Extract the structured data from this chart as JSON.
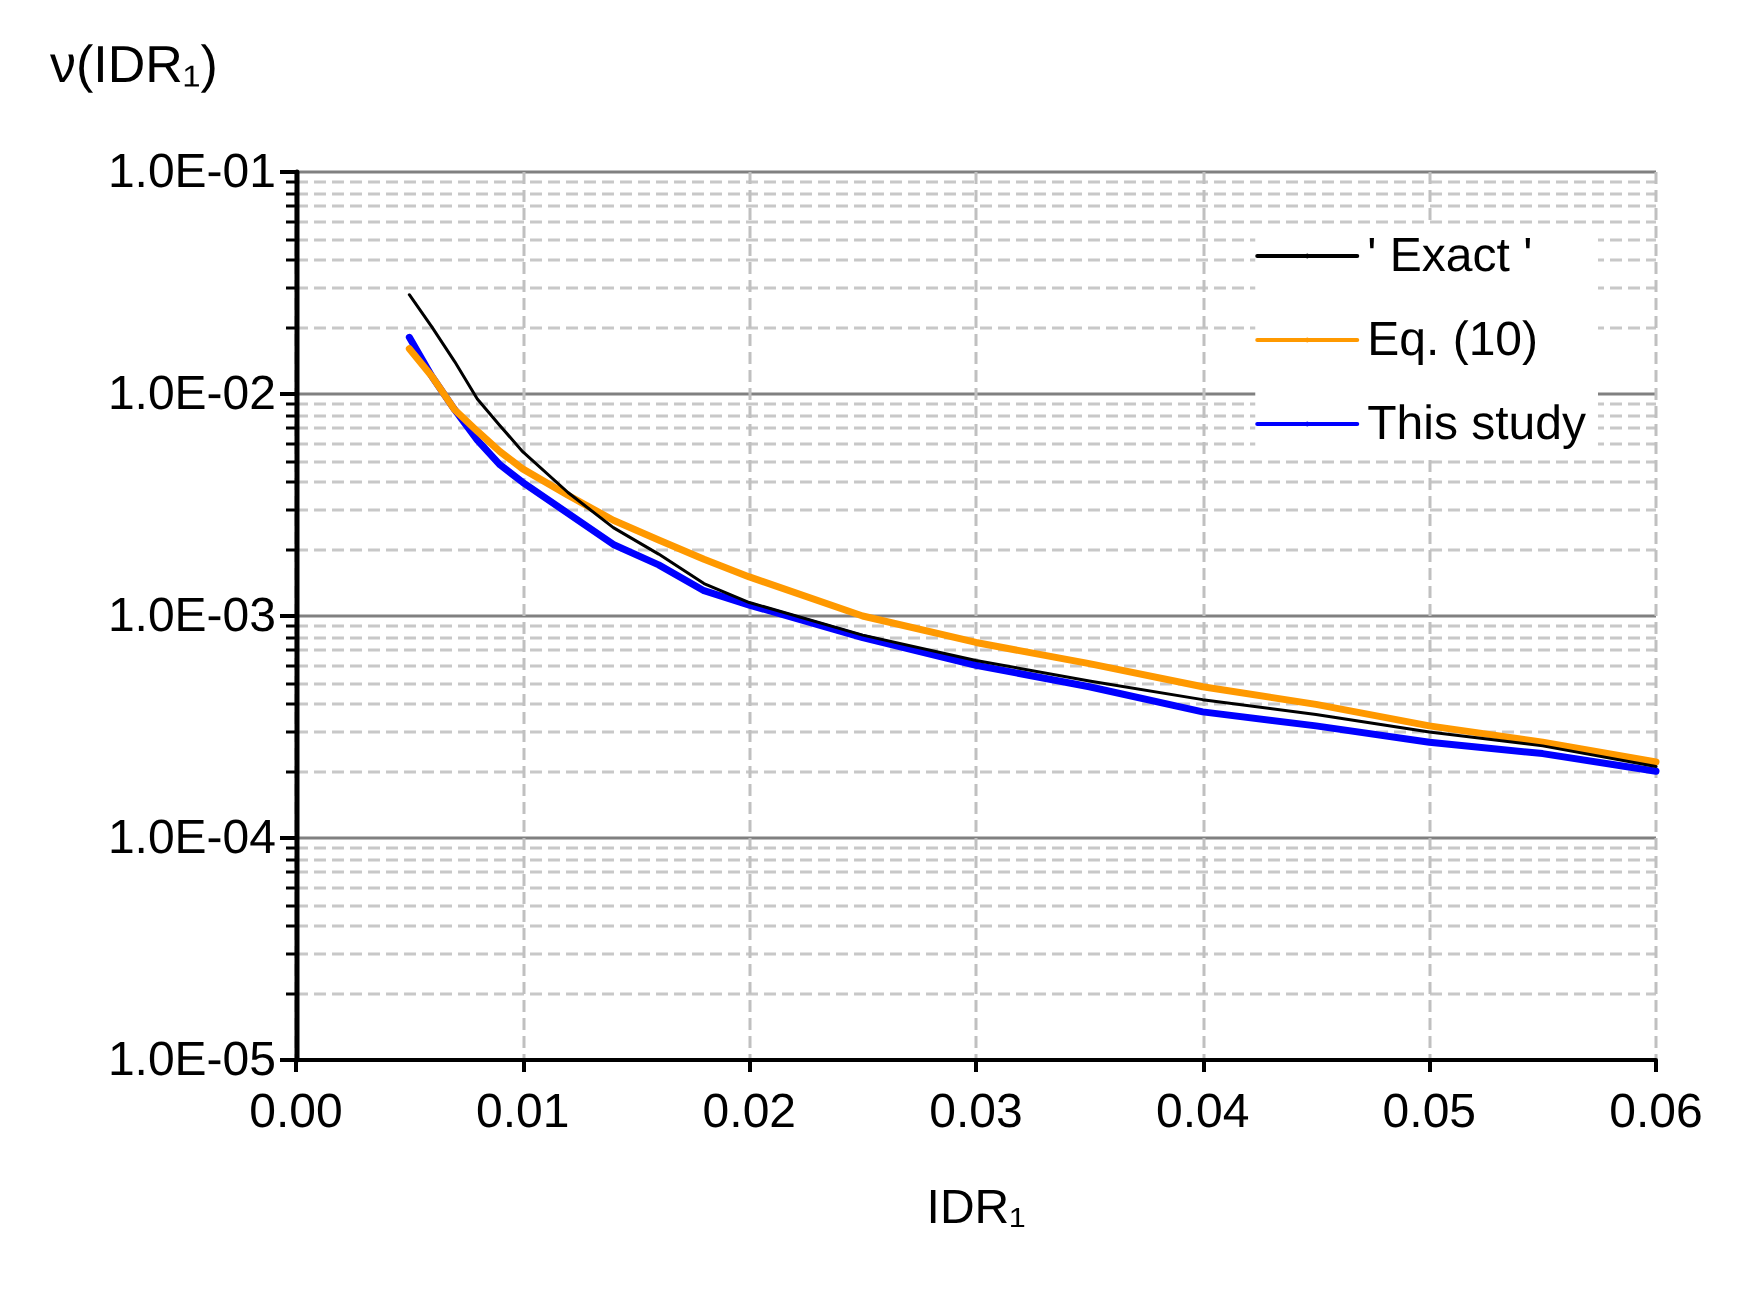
{
  "chart_data": {
    "type": "line",
    "ylabel": "ν(IDR₁)",
    "xlabel": "IDR₁",
    "log": "y",
    "grid": true,
    "legend": "top right",
    "marker": "none",
    "line_style": "solid",
    "x": [
      0.005,
      0.006,
      0.007,
      0.008,
      0.009,
      0.01,
      0.012,
      0.014,
      0.016,
      0.018,
      0.02,
      0.025,
      0.03,
      0.035,
      0.04,
      0.045,
      0.05,
      0.055,
      0.06
    ],
    "xlim": [
      0,
      0.06
    ],
    "ylim": [
      1e-05,
      0.1
    ],
    "xticks": [
      {
        "value": 0,
        "label": "0.00"
      },
      {
        "value": 0.01,
        "label": "0.01"
      },
      {
        "value": 0.02,
        "label": "0.02"
      },
      {
        "value": 0.03,
        "label": "0.03"
      },
      {
        "value": 0.04,
        "label": "0.04"
      },
      {
        "value": 0.05,
        "label": "0.05"
      },
      {
        "value": 0.06,
        "label": "0.06"
      }
    ],
    "yticks": [
      {
        "value": 1e-05,
        "label": "1.0E-05"
      },
      {
        "value": 0.0001,
        "label": "1.0E-04"
      },
      {
        "value": 0.001,
        "label": "1.0E-03"
      },
      {
        "value": 0.01,
        "label": "1.0E-02"
      },
      {
        "value": 0.1,
        "label": "1.0E-01"
      }
    ],
    "series": [
      {
        "name": "' Exact '",
        "color": "#000000",
        "values": [
          0.028,
          0.02,
          0.014,
          0.0095,
          0.0072,
          0.0055,
          0.0036,
          0.0025,
          0.0019,
          0.0014,
          0.00115,
          0.00082,
          0.00063,
          0.00051,
          0.00042,
          0.00036,
          0.0003,
          0.00026,
          0.00021
        ]
      },
      {
        "name": "Eq. (10)",
        "color": "#ff9900",
        "values": [
          0.016,
          0.012,
          0.0085,
          0.0068,
          0.0055,
          0.0046,
          0.0035,
          0.0027,
          0.0022,
          0.0018,
          0.0015,
          0.001,
          0.00076,
          0.00061,
          0.00048,
          0.0004,
          0.00032,
          0.00027,
          0.00022
        ]
      },
      {
        "name": "This study",
        "color": "#0000ff",
        "values": [
          0.018,
          0.012,
          0.0085,
          0.0062,
          0.0048,
          0.004,
          0.0029,
          0.0021,
          0.0017,
          0.0013,
          0.00112,
          0.0008,
          0.0006,
          0.00048,
          0.00037,
          0.00032,
          0.00027,
          0.00024,
          0.0002
        ]
      }
    ]
  }
}
